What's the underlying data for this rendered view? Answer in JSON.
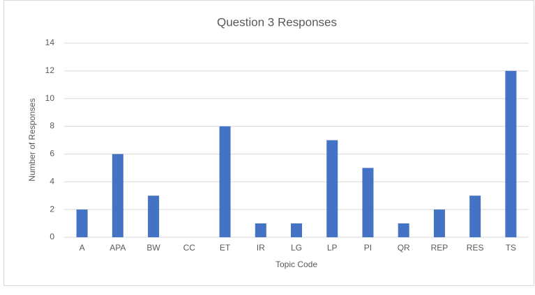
{
  "chart_data": {
    "type": "bar",
    "title": "Question 3 Responses",
    "x_label": "Topic Code",
    "y_label": "Number of Responses",
    "categories": [
      "A",
      "APA",
      "BW",
      "CC",
      "ET",
      "IR",
      "LG",
      "LP",
      "PI",
      "QR",
      "REP",
      "RES",
      "TS"
    ],
    "values": [
      2,
      6,
      3,
      0,
      8,
      1,
      1,
      7,
      5,
      1,
      2,
      3,
      12
    ],
    "color": "#4472c4",
    "ylim": [
      0,
      14
    ],
    "yticks": [
      0,
      2,
      4,
      6,
      8,
      10,
      12,
      14
    ],
    "grid": true
  }
}
